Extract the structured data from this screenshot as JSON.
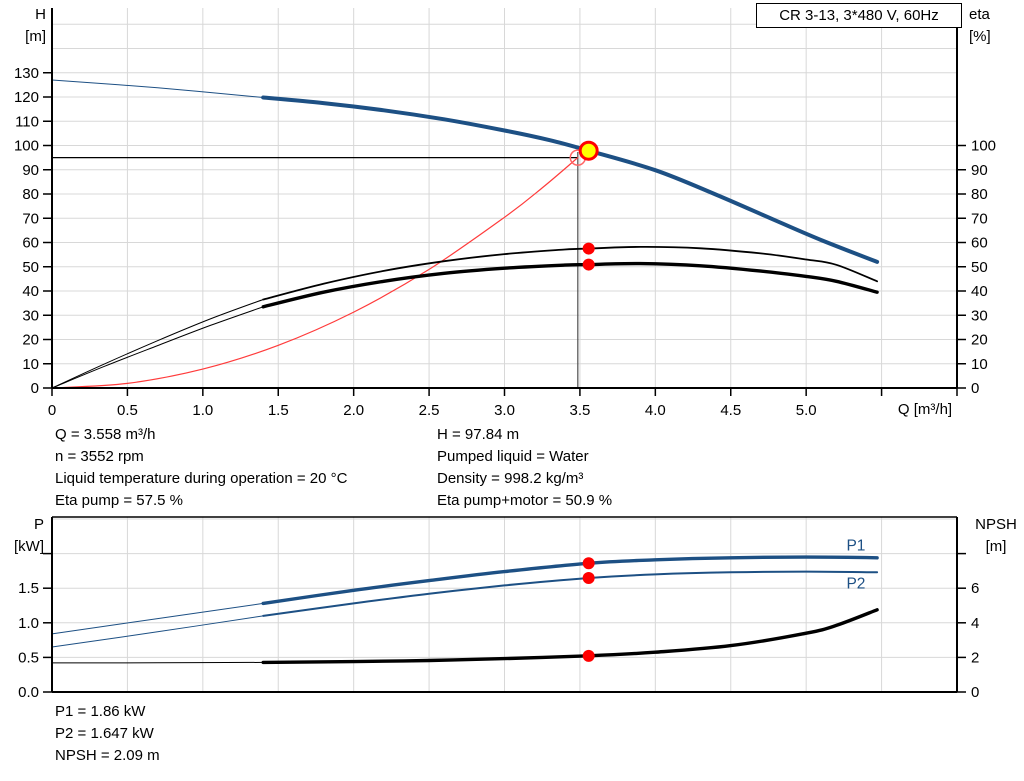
{
  "title_box": {
    "text": "CR 3-13, 3*480 V, 60Hz"
  },
  "colors": {
    "blue": "#1d5084",
    "black": "#000000",
    "red": "#ff3b3b",
    "marker_red": "#ff0000",
    "open_circle_red": "#ff6666",
    "yellow": "#ffff00",
    "grid": "#d8d8d8",
    "duty_vline_gray": "#5a5a5a",
    "blue_text": "#1d5084"
  },
  "top_chart": {
    "y_left_title": [
      "H",
      "[m]"
    ],
    "y_right_title": [
      "eta",
      "[%]"
    ],
    "x_title": "Q [m³/h]"
  },
  "bottom_chart": {
    "y_left_title": [
      "P",
      "[kW]"
    ],
    "y_right_title": [
      "NPSH",
      "[m]"
    ]
  },
  "info_panel_top": {
    "left": [
      "Q = 3.558 m³/h",
      "n = 3552 rpm",
      "Liquid temperature during operation = 20 °C",
      "Eta pump = 57.5 %"
    ],
    "right": [
      "H = 97.84 m",
      "Pumped liquid = Water",
      "Density = 998.2 kg/m³",
      "Eta pump+motor = 50.9 %"
    ]
  },
  "info_panel_bottom": {
    "lines": [
      "P1 = 1.86 kW",
      "P2 = 1.647 kW",
      "NPSH = 2.09 m"
    ]
  },
  "chart_data": [
    {
      "type": "line",
      "name": "qh-eta-chart",
      "axes": {
        "x": {
          "min": 0,
          "max": 6,
          "grid_step": 0.5,
          "label": "Q [m³/h]",
          "tick_values": [
            0,
            0.5,
            1,
            1.5,
            2,
            2.5,
            3,
            3.5,
            4,
            4.5,
            5
          ],
          "tick_labels": [
            "0",
            "0.5",
            "1.0",
            "1.5",
            "2.0",
            "2.5",
            "3.0",
            "3.5",
            "4.0",
            "4.5",
            "5.0"
          ],
          "extra_ticks": [
            5.5,
            6
          ]
        },
        "y_left": {
          "label": [
            "H",
            "[m]"
          ],
          "tick_step": 10,
          "tick_max": 130,
          "grid_max": 150,
          "max_displayed": 156.7
        },
        "y_right": {
          "label": [
            "eta",
            "[%]"
          ],
          "tick_step": 10,
          "tick_max": 100,
          "alignment": "1 eta% aligned with 1 m head"
        }
      },
      "duty_lines": {
        "horizontal_h": 95.0,
        "horizontal_q_end": 3.486,
        "vertical_q": 3.486,
        "vertical_h_top": 97.3
      },
      "series": [
        {
          "name": "qh-curve-extension",
          "color": "blue",
          "width": 1,
          "axis": "left",
          "points": [
            [
              0,
              127
            ],
            [
              0.7,
              123.8
            ],
            [
              1.4,
              119.8
            ]
          ]
        },
        {
          "name": "qh-curve",
          "color": "blue",
          "width": 4,
          "axis": "left",
          "points": [
            [
              1.4,
              119.8
            ],
            [
              1.8,
              117.5
            ],
            [
              2.2,
              114.5
            ],
            [
              2.6,
              110.8
            ],
            [
              3.0,
              106.2
            ],
            [
              3.3,
              102.2
            ],
            [
              3.558,
              97.84
            ],
            [
              4.0,
              89.8
            ],
            [
              4.4,
              79.8
            ],
            [
              4.8,
              69.0
            ],
            [
              5.1,
              61.0
            ],
            [
              5.47,
              52.0
            ]
          ]
        },
        {
          "name": "system-curve",
          "color": "red",
          "width": 1.2,
          "axis": "left",
          "points": [
            [
              0,
              0
            ],
            [
              0.5,
              1.9
            ],
            [
              1.0,
              7.8
            ],
            [
              1.5,
              17.6
            ],
            [
              2.0,
              31.3
            ],
            [
              2.5,
              48.9
            ],
            [
              3.0,
              70.4
            ],
            [
              3.25,
              82.5
            ],
            [
              3.486,
              95
            ]
          ]
        },
        {
          "name": "eta-pump-curve-extension",
          "color": "black",
          "width": 1,
          "axis": "right",
          "points": [
            [
              0,
              0
            ],
            [
              0.35,
              10
            ],
            [
              0.7,
              19.5
            ],
            [
              1.05,
              28.5
            ],
            [
              1.4,
              36.5
            ]
          ]
        },
        {
          "name": "eta-pump-curve",
          "color": "black",
          "width": 1.8,
          "axis": "right",
          "points": [
            [
              1.4,
              36.5
            ],
            [
              1.8,
              43
            ],
            [
              2.2,
              48.3
            ],
            [
              2.6,
              52.3
            ],
            [
              3.0,
              55.2
            ],
            [
              3.4,
              57.1
            ],
            [
              3.558,
              57.5
            ],
            [
              3.9,
              58.2
            ],
            [
              4.3,
              57.6
            ],
            [
              4.7,
              55.5
            ],
            [
              5.0,
              53.0
            ],
            [
              5.2,
              50.8
            ],
            [
              5.47,
              44.0
            ]
          ]
        },
        {
          "name": "eta-pump-motor-curve-extension",
          "color": "black",
          "width": 1,
          "axis": "right",
          "points": [
            [
              0,
              0
            ],
            [
              0.35,
              9
            ],
            [
              0.7,
              17.5
            ],
            [
              1.05,
              25.8
            ],
            [
              1.4,
              33.5
            ]
          ]
        },
        {
          "name": "eta-pump-motor-curve",
          "color": "black",
          "width": 3.4,
          "axis": "right",
          "points": [
            [
              1.4,
              33.5
            ],
            [
              1.8,
              39.5
            ],
            [
              2.2,
              44.0
            ],
            [
              2.6,
              47.3
            ],
            [
              3.0,
              49.4
            ],
            [
              3.4,
              50.7
            ],
            [
              3.558,
              50.9
            ],
            [
              3.9,
              51.3
            ],
            [
              4.3,
              50.4
            ],
            [
              4.7,
              48.2
            ],
            [
              5.0,
              46.0
            ],
            [
              5.2,
              44.0
            ],
            [
              5.47,
              39.5
            ]
          ]
        }
      ],
      "markers": [
        {
          "name": "requested-duty-point",
          "shape": "open-circle",
          "x": 3.486,
          "y": 95.0,
          "r": 7.5,
          "stroke": "#ff6666",
          "stroke_width": 1.5
        },
        {
          "name": "operating-point",
          "shape": "filled-circle",
          "x": 3.558,
          "y": 97.84,
          "r": 8.5,
          "fill": "#ffff00",
          "stroke": "#ff0000",
          "stroke_width": 3
        },
        {
          "name": "eta-pump-operating-dot",
          "shape": "dot",
          "x": 3.558,
          "y": 57.5,
          "r": 6,
          "fill": "#ff0000"
        },
        {
          "name": "eta-pump-motor-operating-dot",
          "shape": "dot",
          "x": 3.558,
          "y": 50.9,
          "r": 6,
          "fill": "#ff0000"
        }
      ]
    },
    {
      "type": "line",
      "name": "power-npsh-chart",
      "axes": {
        "x": {
          "min": 0,
          "max": 6,
          "grid_step": 0.5,
          "ticks_shown": false
        },
        "y_left": {
          "label": [
            "P",
            "[kW]"
          ],
          "tick_values": [
            0,
            0.5,
            1,
            1.5
          ],
          "tick_labels": [
            "0.0",
            "0.5",
            "1.0",
            "1.5"
          ],
          "extra_ticks": [
            2
          ],
          "grid_step": 0.5,
          "grid_max": 2.5,
          "max_displayed": 2.53
        },
        "y_right": {
          "label": [
            "NPSH",
            "[m]"
          ],
          "tick_values": [
            0,
            2,
            4,
            6
          ],
          "tick_labels": [
            "0",
            "2",
            "4",
            "6"
          ],
          "extra_ticks": [
            8
          ],
          "max_displayed": 10.1
        }
      },
      "series": [
        {
          "name": "p1-curve-extension",
          "color": "blue",
          "width": 1,
          "axis": "left",
          "points": [
            [
              0,
              0.84
            ],
            [
              0.7,
              1.06
            ],
            [
              1.4,
              1.28
            ]
          ]
        },
        {
          "name": "p1-curve",
          "color": "blue",
          "width": 3.4,
          "axis": "left",
          "label": "P1",
          "label_pos": [
            5.33,
            2.12
          ],
          "points": [
            [
              1.4,
              1.28
            ],
            [
              2.0,
              1.47
            ],
            [
              2.5,
              1.61
            ],
            [
              3.0,
              1.74
            ],
            [
              3.558,
              1.86
            ],
            [
              4.0,
              1.91
            ],
            [
              4.5,
              1.94
            ],
            [
              5.0,
              1.95
            ],
            [
              5.47,
              1.94
            ]
          ]
        },
        {
          "name": "p2-curve-extension",
          "color": "blue",
          "width": 1,
          "axis": "left",
          "points": [
            [
              0,
              0.65
            ],
            [
              0.7,
              0.87
            ],
            [
              1.4,
              1.1
            ]
          ]
        },
        {
          "name": "p2-curve",
          "color": "blue",
          "width": 2,
          "axis": "left",
          "label": "P2",
          "label_pos": [
            5.33,
            1.57
          ],
          "points": [
            [
              1.4,
              1.1
            ],
            [
              2.0,
              1.28
            ],
            [
              2.5,
              1.42
            ],
            [
              3.0,
              1.54
            ],
            [
              3.558,
              1.647
            ],
            [
              4.0,
              1.7
            ],
            [
              4.5,
              1.73
            ],
            [
              5.0,
              1.74
            ],
            [
              5.47,
              1.73
            ]
          ]
        },
        {
          "name": "npsh-curve-extension",
          "color": "black",
          "width": 1,
          "axis": "right",
          "points": [
            [
              0,
              1.68
            ],
            [
              0.7,
              1.69
            ],
            [
              1.4,
              1.71
            ]
          ]
        },
        {
          "name": "npsh-curve",
          "color": "black",
          "width": 3.4,
          "axis": "right",
          "points": [
            [
              1.4,
              1.71
            ],
            [
              2.0,
              1.76
            ],
            [
              2.5,
              1.82
            ],
            [
              3.0,
              1.93
            ],
            [
              3.558,
              2.09
            ],
            [
              4.0,
              2.3
            ],
            [
              4.5,
              2.68
            ],
            [
              5.0,
              3.4
            ],
            [
              5.2,
              3.85
            ],
            [
              5.47,
              4.75
            ]
          ]
        }
      ],
      "markers": [
        {
          "name": "p1-operating-dot",
          "shape": "dot",
          "axis": "left",
          "x": 3.558,
          "y": 1.86,
          "r": 6,
          "fill": "#ff0000"
        },
        {
          "name": "p2-operating-dot",
          "shape": "dot",
          "axis": "left",
          "x": 3.558,
          "y": 1.647,
          "r": 6,
          "fill": "#ff0000"
        },
        {
          "name": "npsh-operating-dot",
          "shape": "dot",
          "axis": "right",
          "x": 3.558,
          "y": 2.09,
          "r": 6,
          "fill": "#ff0000"
        }
      ]
    }
  ]
}
